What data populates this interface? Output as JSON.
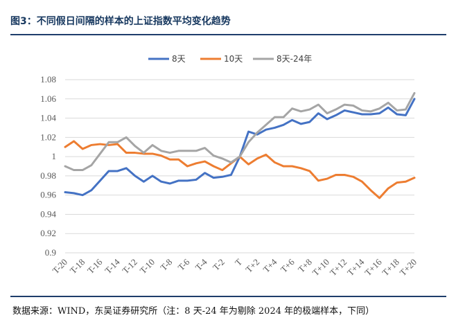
{
  "header": {
    "title": "图3：不同假日间隔的样本的上证指数平均变化趋势"
  },
  "footer": {
    "source": "数据来源：WIND，东吴证券研究所（注：8 天-24 年为剔除 2024 年的极端样本，下同）"
  },
  "chart_data": {
    "type": "line",
    "title": "",
    "xlabel": "",
    "ylabel": "",
    "ylim": [
      0.9,
      1.08
    ],
    "yticks": [
      0.9,
      0.92,
      0.94,
      0.96,
      0.98,
      1,
      1.02,
      1.04,
      1.06,
      1.08
    ],
    "ytick_labels": [
      "0.9",
      "0.92",
      "0.94",
      "0.96",
      "0.98",
      "1",
      "1.02",
      "1.04",
      "1.06",
      "1.08"
    ],
    "grid": true,
    "legend_position": "top",
    "categories": [
      "T-20",
      "T-19",
      "T-18",
      "T-17",
      "T-16",
      "T-15",
      "T-14",
      "T-13",
      "T-12",
      "T-11",
      "T-10",
      "T-9",
      "T-8",
      "T-7",
      "T-6",
      "T-5",
      "T-4",
      "T-3",
      "T-2",
      "T-1",
      "T",
      "T+1",
      "T+2",
      "T+3",
      "T+4",
      "T+5",
      "T+6",
      "T+7",
      "T+8",
      "T+9",
      "T+10",
      "T+11",
      "T+12",
      "T+13",
      "T+14",
      "T+15",
      "T+16",
      "T+17",
      "T+18",
      "T+19",
      "T+20"
    ],
    "tick_labels": [
      "T-20",
      "T-18",
      "T-16",
      "T-14",
      "T-12",
      "T-10",
      "T-8",
      "T-6",
      "T-4",
      "T-2",
      "T",
      "T+2",
      "T+4",
      "T+6",
      "T+8",
      "T+10",
      "T+12",
      "T+14",
      "T+16",
      "T+18",
      "T+20"
    ],
    "series": [
      {
        "name": "8天",
        "color": "#4472C4",
        "values": [
          0.963,
          0.962,
          0.96,
          0.965,
          0.975,
          0.985,
          0.985,
          0.988,
          0.98,
          0.974,
          0.98,
          0.974,
          0.972,
          0.975,
          0.975,
          0.976,
          0.983,
          0.978,
          0.979,
          0.981,
          1.0,
          1.026,
          1.023,
          1.028,
          1.03,
          1.033,
          1.038,
          1.034,
          1.036,
          1.045,
          1.039,
          1.043,
          1.048,
          1.046,
          1.044,
          1.044,
          1.045,
          1.051,
          1.044,
          1.043,
          1.06
        ]
      },
      {
        "name": "10天",
        "color": "#ED7D31",
        "values": [
          1.01,
          1.016,
          1.008,
          1.012,
          1.013,
          1.012,
          1.013,
          1.004,
          1.004,
          1.003,
          1.003,
          1.001,
          0.997,
          0.997,
          0.99,
          0.993,
          0.995,
          0.99,
          0.986,
          0.993,
          1.0,
          0.992,
          0.998,
          1.002,
          0.994,
          0.99,
          0.99,
          0.988,
          0.985,
          0.975,
          0.977,
          0.981,
          0.981,
          0.979,
          0.974,
          0.965,
          0.957,
          0.967,
          0.973,
          0.974,
          0.978
        ]
      },
      {
        "name": "8天-24年",
        "color": "#A5A5A5",
        "values": [
          0.99,
          0.986,
          0.986,
          0.991,
          1.003,
          1.015,
          1.015,
          1.02,
          1.011,
          1.004,
          1.012,
          1.006,
          1.004,
          1.006,
          1.006,
          1.006,
          1.009,
          1.001,
          0.998,
          0.994,
          1.0,
          1.015,
          1.025,
          1.033,
          1.041,
          1.041,
          1.05,
          1.047,
          1.049,
          1.054,
          1.045,
          1.049,
          1.054,
          1.053,
          1.048,
          1.047,
          1.05,
          1.056,
          1.048,
          1.049,
          1.066
        ]
      }
    ]
  }
}
